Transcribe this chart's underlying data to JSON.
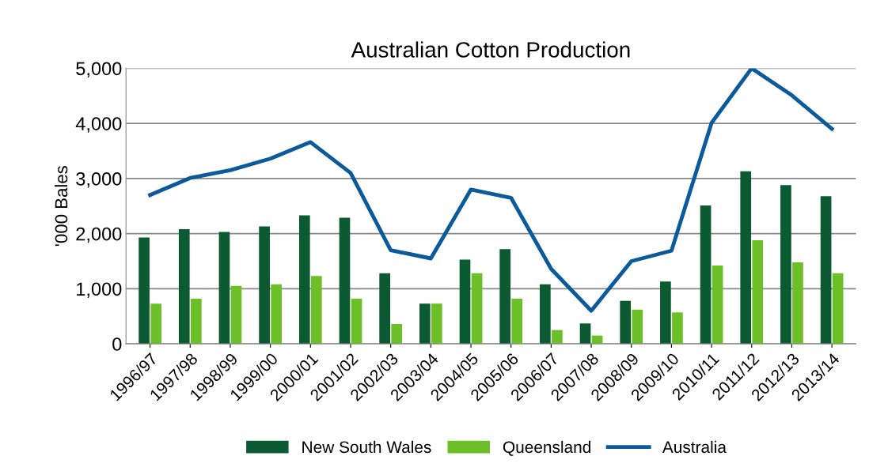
{
  "chart_data": {
    "type": "bar",
    "title": "Australian Cotton Production",
    "ylabel": "'000 Bales",
    "categories": [
      "1996/97",
      "1997/98",
      "1998/99",
      "1999/00",
      "2000/01",
      "2001/02",
      "2002/03",
      "2003/04",
      "2004/05",
      "2005/06",
      "2006/07",
      "2007/08",
      "2008/09",
      "2009/10",
      "2010/11",
      "2011/12",
      "2012/13",
      "2013/14"
    ],
    "series": [
      {
        "name": "New South Wales",
        "color": "#0b5a32",
        "values": [
          1930,
          2080,
          2030,
          2130,
          2330,
          2290,
          1280,
          730,
          1530,
          1720,
          1080,
          370,
          780,
          1130,
          2510,
          3130,
          2880,
          2680
        ]
      },
      {
        "name": "Queensland",
        "color": "#6cbf26",
        "values": [
          730,
          820,
          1050,
          1080,
          1230,
          820,
          360,
          730,
          1280,
          820,
          250,
          150,
          620,
          570,
          1420,
          1880,
          1480,
          1280
        ]
      },
      {
        "name": "Australia",
        "type": "line",
        "color": "#0a5a9c",
        "values": [
          2700,
          3010,
          3150,
          3360,
          3660,
          3100,
          1700,
          1550,
          2800,
          2650,
          1360,
          600,
          1500,
          1690,
          4010,
          5000,
          4510,
          3900
        ]
      }
    ],
    "ylim": [
      0,
      5000
    ],
    "yticks": [
      {
        "value": 0,
        "label": "0"
      },
      {
        "value": 1000,
        "label": "1,000"
      },
      {
        "value": 2000,
        "label": "2,000"
      },
      {
        "value": 3000,
        "label": "3,000"
      },
      {
        "value": 4000,
        "label": "4,000"
      },
      {
        "value": 5000,
        "label": "5,000"
      }
    ],
    "grid": "y",
    "legend": "bottom"
  }
}
